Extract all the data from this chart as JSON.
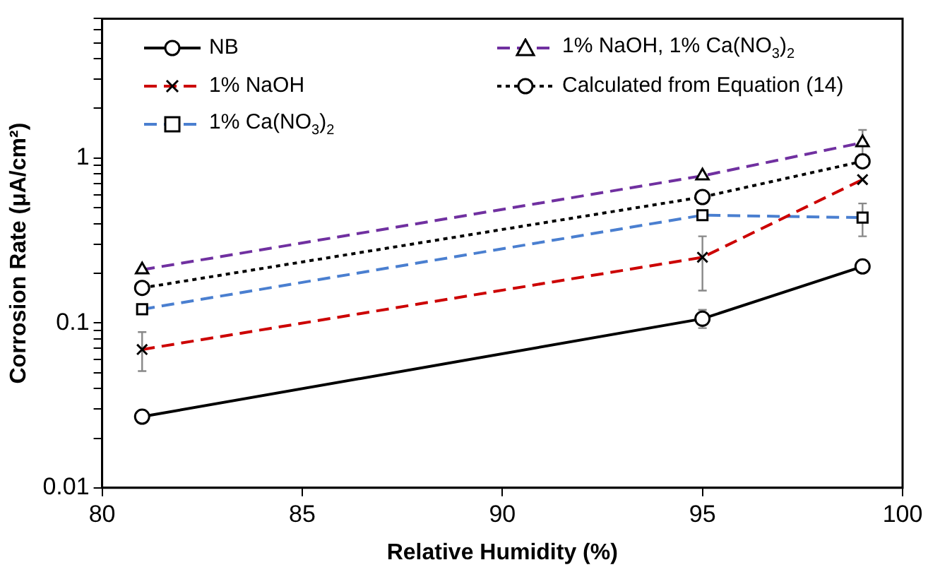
{
  "chart_data": {
    "type": "line",
    "xlabel": "Relative Humidity (%)",
    "ylabel": "Corrosion Rate (μA/cm²)",
    "x": [
      81,
      95,
      99
    ],
    "xlim": [
      80,
      100
    ],
    "xticks": [
      80,
      85,
      90,
      95,
      100
    ],
    "ylim": [
      0.01,
      7
    ],
    "log": "y",
    "yticks": [
      0.01,
      {
        "value": 0.02,
        "label": null
      },
      {
        "value": 0.03,
        "label": null
      },
      {
        "value": 0.04,
        "label": null
      },
      {
        "value": 0.05,
        "label": null
      },
      {
        "value": 0.06,
        "label": null
      },
      {
        "value": 0.07,
        "label": null
      },
      {
        "value": 0.08,
        "label": null
      },
      {
        "value": 0.09,
        "label": null
      },
      0.1,
      {
        "value": 0.2,
        "label": null
      },
      {
        "value": 0.3,
        "label": null
      },
      {
        "value": 0.4,
        "label": null
      },
      {
        "value": 0.5,
        "label": null
      },
      {
        "value": 0.6,
        "label": null
      },
      {
        "value": 0.7,
        "label": null
      },
      {
        "value": 0.8,
        "label": null
      },
      {
        "value": 0.9,
        "label": null
      },
      1,
      {
        "value": 2,
        "label": null
      },
      {
        "value": 3,
        "label": null
      },
      {
        "value": 4,
        "label": null
      },
      {
        "value": 5,
        "label": null
      },
      {
        "value": 6,
        "label": null
      },
      {
        "value": 7,
        "label": null
      }
    ],
    "grid": false,
    "legend": "top left",
    "series": [
      {
        "name": "NB",
        "color": "#000000",
        "values": [
          0.027,
          0.106,
          0.22
        ],
        "marker": "circle",
        "line_style": "solid",
        "errors": [
          null,
          [
            0.093,
            0.12
          ],
          [
            0.205,
            0.24
          ]
        ]
      },
      {
        "name": "1% NaOH",
        "color": "#cc0000",
        "values": [
          0.069,
          0.25,
          0.74
        ],
        "marker": "cross",
        "line_style": "dashed",
        "errors": [
          [
            0.051,
            0.088
          ],
          [
            0.157,
            0.335
          ],
          null
        ]
      },
      {
        "name": "1% Ca(NO$_{3}$)$_{2}$",
        "color": "#4a7fd0",
        "values": [
          0.121,
          0.45,
          0.435
        ],
        "marker": "square",
        "line_style": "dashed",
        "errors": [
          null,
          null,
          [
            0.335,
            0.53
          ]
        ]
      },
      {
        "name": "1% NaOH, 1% Ca(NO$_{3}$)$_{2}$",
        "color": "#7030a0",
        "values": [
          0.21,
          0.78,
          1.24
        ],
        "marker": "triangle",
        "line_style": "dashed",
        "errors": [
          null,
          null,
          [
            1.05,
            1.48
          ]
        ]
      },
      {
        "name": "Calculated from Equation (14)",
        "color": "#000000",
        "values": [
          0.163,
          0.58,
          0.955
        ],
        "marker": "circle",
        "line_style": "dotted"
      }
    ]
  }
}
